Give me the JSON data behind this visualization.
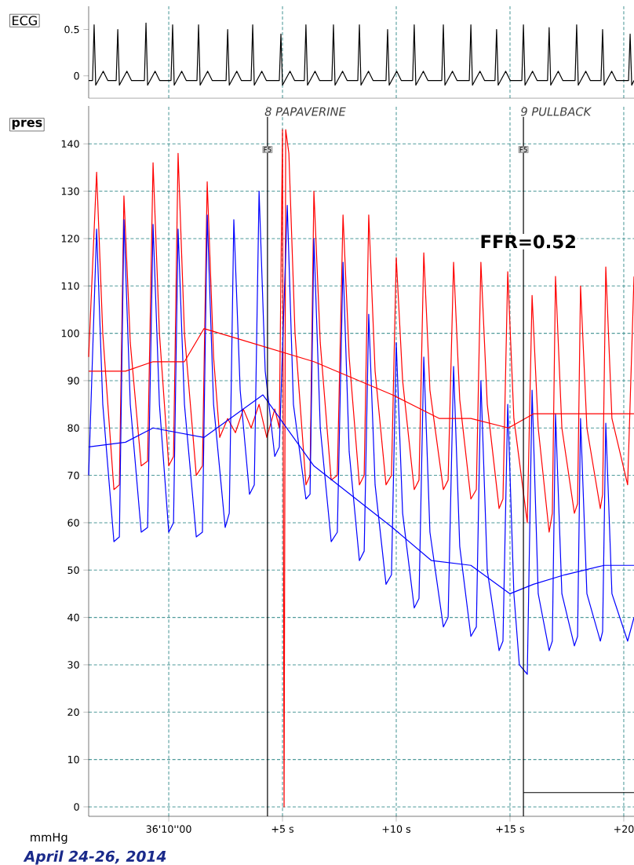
{
  "chart_data": [
    {
      "type": "line",
      "ylabel": "ECG",
      "xlim": [
        -3.52,
        20.45
      ],
      "ylim": [
        -0.24,
        0.75
      ],
      "xticks": [
        0,
        5,
        10,
        15,
        20
      ],
      "yticks": [
        0,
        0.5
      ],
      "tick_labels": "y",
      "grid": "x",
      "series": [
        {
          "color": "#000000",
          "x": [
            -3.52,
            -3.35,
            -3.28,
            -3.21,
            -2.88,
            -2.68,
            -2.31,
            -2.24,
            -2.17,
            -1.84,
            -1.64,
            -1.07,
            -1.0,
            -0.93,
            -0.6,
            -0.4,
            0.1,
            0.17,
            0.24,
            0.57,
            0.77,
            1.24,
            1.31,
            1.38,
            1.71,
            1.91,
            2.52,
            2.59,
            2.66,
            2.99,
            3.19,
            3.62,
            3.69,
            3.76,
            4.09,
            4.29,
            4.86,
            4.93,
            5.0,
            5.33,
            5.53,
            5.96,
            6.03,
            6.1,
            6.43,
            6.63,
            7.17,
            7.24,
            7.31,
            7.64,
            7.84,
            8.31,
            8.38,
            8.45,
            8.78,
            8.98,
            9.55,
            9.62,
            9.69,
            10.02,
            10.22,
            10.72,
            10.79,
            10.86,
            11.19,
            11.39,
            12.0,
            12.07,
            12.14,
            12.47,
            12.67,
            13.21,
            13.28,
            13.35,
            13.68,
            13.88,
            14.34,
            14.41,
            14.48,
            14.81,
            15.01,
            15.52,
            15.59,
            15.66,
            15.99,
            16.19,
            16.65,
            16.72,
            16.79,
            17.12,
            17.32,
            17.86,
            17.93,
            18.0,
            18.33,
            18.53,
            19.0,
            19.07,
            19.14,
            19.47,
            19.67,
            20.21,
            20.28,
            20.35,
            20.45
          ],
          "values": [
            -0.05,
            -0.05,
            0.55,
            -0.1,
            0.05,
            -0.05,
            -0.05,
            0.5,
            -0.1,
            0.05,
            -0.05,
            -0.05,
            0.57,
            -0.1,
            0.05,
            -0.05,
            -0.05,
            0.55,
            -0.1,
            0.05,
            -0.05,
            -0.05,
            0.55,
            -0.1,
            0.05,
            -0.05,
            -0.05,
            0.5,
            -0.1,
            0.05,
            -0.05,
            -0.05,
            0.55,
            -0.1,
            0.05,
            -0.05,
            -0.05,
            0.45,
            -0.1,
            0.05,
            -0.05,
            -0.05,
            0.55,
            -0.1,
            0.05,
            -0.05,
            -0.05,
            0.55,
            -0.1,
            0.05,
            -0.05,
            -0.05,
            0.55,
            -0.1,
            0.05,
            -0.05,
            -0.05,
            0.5,
            -0.1,
            0.05,
            -0.05,
            -0.05,
            0.55,
            -0.1,
            0.05,
            -0.05,
            -0.05,
            0.55,
            -0.1,
            0.05,
            -0.05,
            -0.05,
            0.55,
            -0.1,
            0.05,
            -0.05,
            -0.05,
            0.5,
            -0.1,
            0.05,
            -0.05,
            -0.05,
            0.55,
            -0.1,
            0.05,
            -0.05,
            -0.05,
            0.52,
            -0.1,
            0.05,
            -0.05,
            -0.05,
            0.55,
            -0.1,
            0.05,
            -0.05,
            -0.05,
            0.5,
            -0.1,
            0.05,
            -0.05,
            -0.05,
            0.45,
            -0.1,
            -0.05
          ]
        }
      ]
    },
    {
      "type": "line",
      "ylabel": "pres",
      "xlim": [
        -3.52,
        20.45
      ],
      "ylim": [
        -2,
        148
      ],
      "grid": true,
      "xticks": [
        {
          "value": 0,
          "label": "36'10''00"
        },
        {
          "value": 5,
          "label": "+5 s"
        },
        {
          "value": 10,
          "label": "+10 s"
        },
        {
          "value": 15,
          "label": "+15 s"
        },
        {
          "value": 20,
          "label": "+20"
        }
      ],
      "yticks": [
        0,
        10,
        20,
        30,
        40,
        50,
        60,
        70,
        80,
        90,
        100,
        110,
        120,
        130,
        140
      ],
      "ref_lines": [
        {
          "axis": "x",
          "value": 4.34,
          "label": "8 PAPAVERINE",
          "color": "#000000"
        },
        {
          "axis": "x",
          "value": 15.59,
          "label": "9 PULLBACK",
          "color": "#000000"
        }
      ],
      "annotations": [
        {
          "text": "F5",
          "x": 4.34,
          "y": 139.5
        },
        {
          "text": "F5",
          "x": 15.59,
          "y": 139.5
        },
        "FFR=0.52",
        "mmHg",
        "April 24-26, 2014"
      ],
      "series": [
        {
          "color": "#ff0000",
          "x": [
            -3.52,
            -3.17,
            -2.9,
            -2.41,
            -2.17,
            -1.97,
            -1.69,
            -1.21,
            -0.93,
            -0.69,
            -0.41,
            0,
            0.21,
            0.41,
            0.69,
            1.21,
            1.48,
            1.69,
            1.97,
            2.24,
            2.59,
            2.93,
            3.28,
            3.62,
            3.97,
            4.31,
            4.66,
            4.86,
            5.0,
            5.07,
            5.14,
            5.28,
            5.55,
            6.03,
            6.21,
            6.38,
            6.66,
            7.14,
            7.41,
            7.66,
            7.93,
            8.38,
            8.59,
            8.79,
            9.07,
            9.55,
            9.79,
            10.0,
            10.28,
            10.79,
            11.0,
            11.21,
            11.48,
            12.07,
            12.28,
            12.52,
            12.79,
            13.28,
            13.52,
            13.72,
            14.0,
            14.52,
            14.69,
            14.9,
            15.17,
            15.76,
            15.97,
            16.24,
            16.72,
            16.86,
            17.0,
            17.28,
            17.83,
            17.97,
            18.1,
            18.38,
            18.97,
            19.07,
            19.21,
            19.48,
            20.17,
            20.45
          ],
          "values": [
            95,
            134,
            100,
            67,
            68,
            129,
            98,
            72,
            73,
            136,
            100,
            72,
            74,
            138,
            100,
            70,
            72,
            132,
            95,
            78,
            82,
            79,
            84,
            80,
            85,
            78,
            84,
            80,
            143,
            0,
            143,
            138,
            100,
            68,
            70,
            130,
            98,
            69,
            70,
            125,
            95,
            68,
            70,
            125,
            92,
            68,
            70,
            116,
            90,
            67,
            69,
            117,
            88,
            67,
            69,
            115,
            86,
            65,
            67,
            115,
            85,
            63,
            65,
            113,
            82,
            60,
            108,
            80,
            58,
            62,
            112,
            80,
            62,
            64,
            110,
            80,
            63,
            66,
            114,
            82,
            68,
            112
          ]
        },
        {
          "color": "#0000ff",
          "x": [
            -3.52,
            -3.17,
            -2.9,
            -2.41,
            -2.17,
            -1.97,
            -1.69,
            -1.21,
            -0.93,
            -0.69,
            -0.41,
            0,
            0.21,
            0.41,
            0.69,
            1.21,
            1.48,
            1.69,
            1.97,
            2.48,
            2.66,
            2.86,
            3.14,
            3.55,
            3.76,
            3.97,
            4.24,
            4.66,
            4.86,
            5.21,
            5.48,
            6.03,
            6.21,
            6.38,
            6.66,
            7.14,
            7.41,
            7.66,
            7.93,
            8.38,
            8.59,
            8.79,
            9.07,
            9.55,
            9.79,
            10.0,
            10.28,
            10.79,
            11.0,
            11.21,
            11.48,
            12.07,
            12.28,
            12.52,
            12.79,
            13.28,
            13.52,
            13.72,
            14.0,
            14.52,
            14.69,
            14.9,
            15.17,
            15.41,
            15.76,
            15.97,
            16.24,
            16.72,
            16.86,
            17.0,
            17.28,
            17.83,
            17.97,
            18.1,
            18.38,
            18.97,
            19.07,
            19.21,
            19.48,
            20.17,
            20.45
          ],
          "values": [
            70,
            122,
            85,
            56,
            57,
            124,
            85,
            58,
            59,
            123,
            85,
            58,
            60,
            122,
            85,
            57,
            58,
            125,
            85,
            59,
            62,
            124,
            88,
            66,
            68,
            130,
            92,
            74,
            76,
            127,
            85,
            65,
            66,
            120,
            80,
            56,
            58,
            115,
            75,
            52,
            54,
            104,
            68,
            47,
            49,
            98,
            62,
            42,
            44,
            95,
            58,
            38,
            40,
            93,
            55,
            36,
            38,
            90,
            50,
            33,
            35,
            85,
            45,
            30,
            28,
            88,
            45,
            33,
            35,
            83,
            45,
            34,
            36,
            82,
            45,
            35,
            37,
            81,
            45,
            35,
            40
          ]
        },
        {
          "color": "#ff0000",
          "x": [
            -3.52,
            -1.9,
            -0.69,
            0.69,
            1.55,
            2.93,
            6.38,
            9.83,
            11.9,
            13.28,
            14.93,
            16.03,
            20.45
          ],
          "values": [
            92,
            92,
            94,
            94,
            101,
            99,
            94,
            87,
            82,
            82,
            80,
            83,
            83
          ]
        },
        {
          "color": "#0000ff",
          "x": [
            -3.52,
            -1.9,
            -0.69,
            1.55,
            4.14,
            6.38,
            9.83,
            11.55,
            13.28,
            15.0,
            16.03,
            17.41,
            19.14,
            20.45
          ],
          "values": [
            76,
            77,
            80,
            78,
            87,
            72,
            59,
            52,
            51,
            45,
            47,
            49,
            51,
            51
          ]
        },
        {
          "color": "#000000",
          "x": [
            15.59,
            20.45
          ],
          "values": [
            3,
            3
          ]
        }
      ]
    }
  ]
}
